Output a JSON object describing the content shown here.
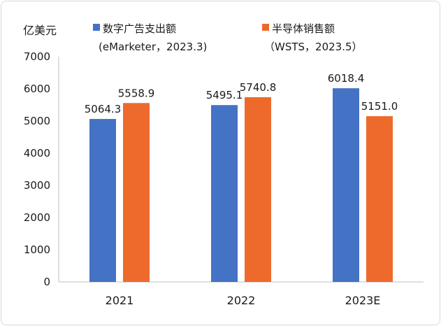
{
  "chart_data": {
    "type": "bar",
    "title": "",
    "ylabel": "亿美元",
    "xlabel": "",
    "categories": [
      "2021",
      "2022",
      "2023E"
    ],
    "series": [
      {
        "name": "数字广告支出额",
        "source": "(eMarketer，2023.3)",
        "color": "#4472c4",
        "values": [
          5064.3,
          5495.1,
          6018.4
        ],
        "labels": [
          "5064.3",
          "5495.1",
          "6018.4"
        ]
      },
      {
        "name": "半导体销售额",
        "source": "（WSTS，2023.5）",
        "color": "#ed6a2c",
        "values": [
          5558.9,
          5740.8,
          5151.0
        ],
        "labels": [
          "5558.9",
          "5740.8",
          "5151.0"
        ]
      }
    ],
    "ylim": [
      0,
      7000
    ],
    "yticks": [
      "0",
      "1000",
      "2000",
      "3000",
      "4000",
      "5000",
      "6000",
      "7000"
    ],
    "ytick_values": [
      0,
      1000,
      2000,
      3000,
      4000,
      5000,
      6000,
      7000
    ],
    "grid": false,
    "legend_position": "top"
  }
}
